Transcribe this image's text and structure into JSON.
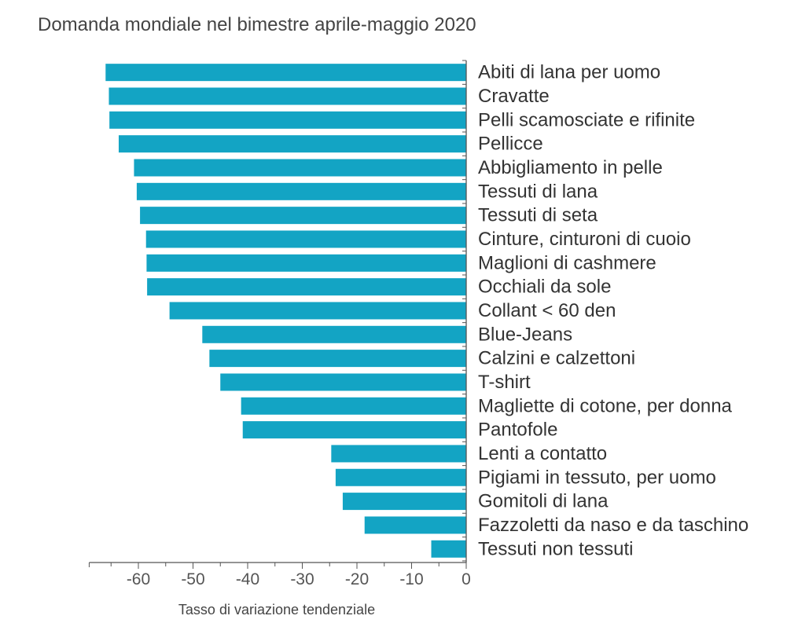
{
  "chart_data": {
    "type": "bar",
    "orientation": "horizontal",
    "title": "Domanda mondiale nel bimestre aprile-maggio 2020",
    "xlabel": "Tasso di variazione tendenziale",
    "ylabel": "",
    "xlim": [
      -69,
      0
    ],
    "xticks": [
      -60,
      -50,
      -40,
      -30,
      -20,
      -10,
      0
    ],
    "grid": false,
    "legend": "none",
    "bar_color": "#13A4C4",
    "categories": [
      "Abiti di lana per uomo",
      "Cravatte",
      "Pelli scamosciate e rifinite",
      "Pellicce",
      "Abbigliamento in pelle",
      "Tessuti di lana",
      "Tessuti di seta",
      "Cinture, cinturoni di cuoio",
      "Maglioni di cashmere",
      "Occhiali da sole",
      "Collant < 60 den",
      "Blue-Jeans",
      "Calzini e calzettoni",
      "T-shirt",
      "Magliette di cotone, per donna",
      "Pantofole",
      "Lenti a contatto",
      "Pigiami in tessuto, per uomo",
      "Gomitoli di lana",
      "Fazzoletti da naso e da taschino",
      "Tessuti non tessuti"
    ],
    "values": [
      -66.0,
      -65.4,
      -65.3,
      -63.6,
      -60.8,
      -60.3,
      -59.7,
      -58.6,
      -58.5,
      -58.4,
      -54.3,
      -48.3,
      -47.0,
      -45.0,
      -41.2,
      -40.9,
      -24.7,
      -23.9,
      -22.6,
      -18.6,
      -6.4
    ]
  }
}
